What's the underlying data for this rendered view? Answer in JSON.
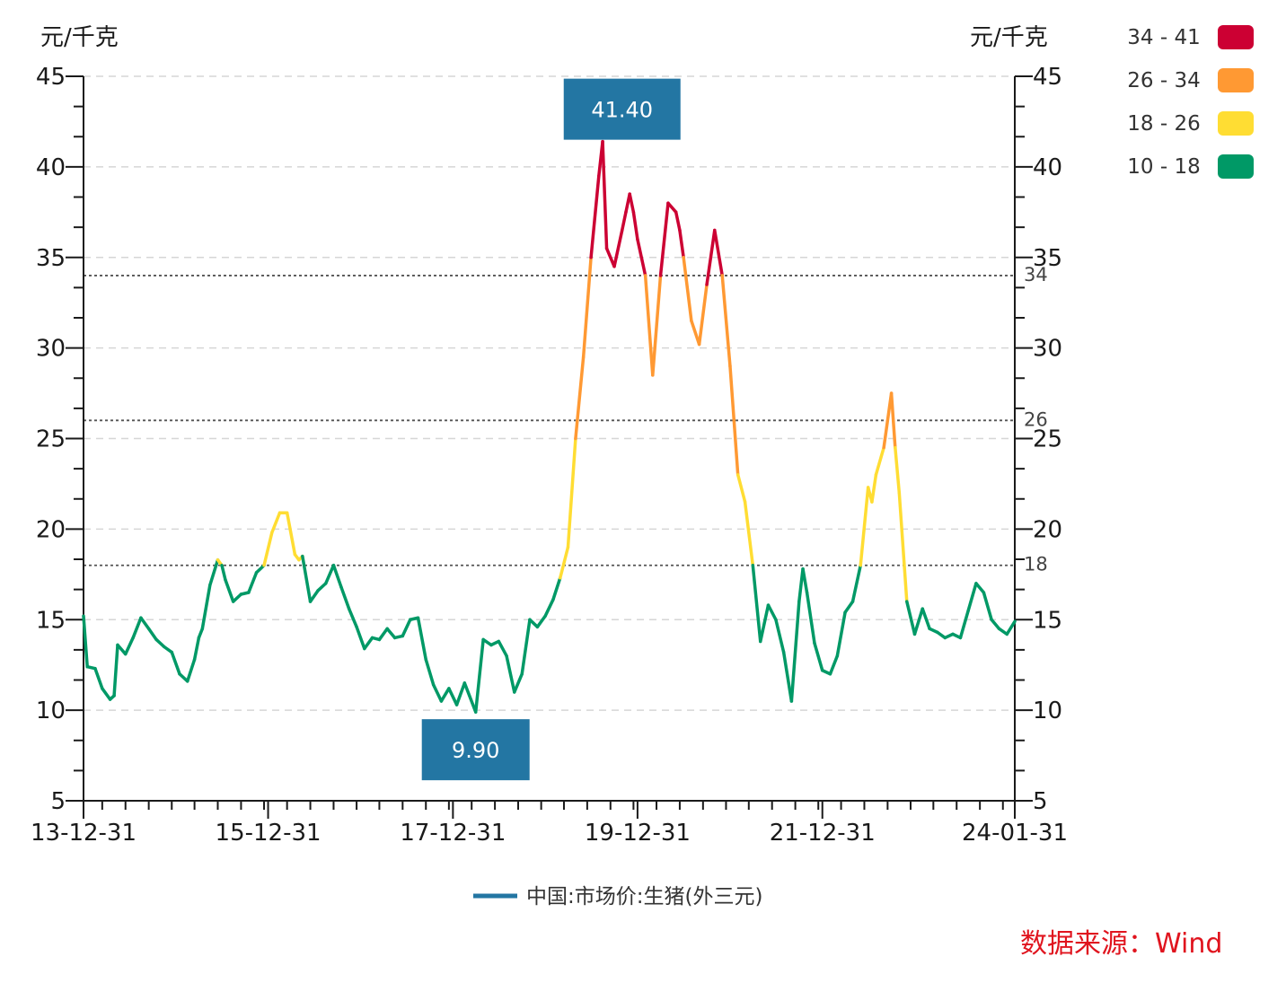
{
  "chart_data": {
    "type": "line",
    "y_unit_left": "元/千克",
    "y_unit_right": "元/千克",
    "ylim": [
      5,
      45
    ],
    "y_ticks": [
      5,
      10,
      15,
      20,
      25,
      30,
      35,
      40,
      45
    ],
    "x_range": [
      "2013-12-31",
      "2024-01-31"
    ],
    "x_tick_labels": [
      {
        "date": "2013-12-31",
        "label": "13-12-31"
      },
      {
        "date": "2015-12-31",
        "label": "15-12-31"
      },
      {
        "date": "2017-12-31",
        "label": "17-12-31"
      },
      {
        "date": "2019-12-31",
        "label": "19-12-31"
      },
      {
        "date": "2021-12-31",
        "label": "21-12-31"
      },
      {
        "date": "2024-01-31",
        "label": "24-01-31"
      }
    ],
    "grid": true,
    "thresholds": [
      {
        "value": 34,
        "label": "34"
      },
      {
        "value": 26,
        "label": "26"
      },
      {
        "value": 18,
        "label": "18"
      }
    ],
    "color_bands": [
      {
        "label": "34 - 41",
        "min": 34,
        "max": 41,
        "color": "#cc0033"
      },
      {
        "label": "26 - 34",
        "min": 26,
        "max": 34,
        "color": "#ff9933"
      },
      {
        "label": "18 - 26",
        "min": 18,
        "max": 26,
        "color": "#ffdd33"
      },
      {
        "label": "10 - 18",
        "min": 10,
        "max": 18,
        "color": "#009966"
      }
    ],
    "annotations": [
      {
        "label": "41.40",
        "date": "2019-10-31",
        "value": 41.4
      },
      {
        "label": "9.90",
        "date": "2018-03-31",
        "value": 9.9
      }
    ],
    "legend_position": "bottom",
    "series": [
      {
        "name": "中国:市场价:生猪(外三元)",
        "color": "#2376a3",
        "x": [
          "2013-12-31",
          "2014-01-15",
          "2014-02-15",
          "2014-03-15",
          "2014-04-15",
          "2014-05-01",
          "2014-05-15",
          "2014-06-15",
          "2014-07-15",
          "2014-08-15",
          "2014-09-15",
          "2014-10-15",
          "2014-11-15",
          "2014-12-15",
          "2015-01-15",
          "2015-02-15",
          "2015-03-15",
          "2015-04-01",
          "2015-04-15",
          "2015-05-15",
          "2015-06-15",
          "2015-07-01",
          "2015-07-15",
          "2015-08-15",
          "2015-09-15",
          "2015-10-15",
          "2015-11-15",
          "2015-12-15",
          "2016-01-15",
          "2016-02-15",
          "2016-03-15",
          "2016-04-15",
          "2016-05-01",
          "2016-05-15",
          "2016-06-15",
          "2016-07-15",
          "2016-08-15",
          "2016-09-15",
          "2016-10-15",
          "2016-11-15",
          "2016-12-15",
          "2017-01-15",
          "2017-02-15",
          "2017-03-15",
          "2017-04-15",
          "2017-05-15",
          "2017-06-15",
          "2017-07-15",
          "2017-08-15",
          "2017-09-15",
          "2017-10-15",
          "2017-11-15",
          "2017-12-15",
          "2018-01-15",
          "2018-02-15",
          "2018-03-31",
          "2018-04-30",
          "2018-05-31",
          "2018-06-30",
          "2018-07-31",
          "2018-08-31",
          "2018-09-30",
          "2018-10-31",
          "2018-11-30",
          "2018-12-31",
          "2019-01-31",
          "2019-02-28",
          "2019-03-31",
          "2019-04-30",
          "2019-05-31",
          "2019-06-30",
          "2019-07-31",
          "2019-08-15",
          "2019-08-31",
          "2019-09-30",
          "2019-10-31",
          "2019-11-15",
          "2019-11-30",
          "2019-12-15",
          "2019-12-31",
          "2020-01-31",
          "2020-02-29",
          "2020-03-31",
          "2020-04-30",
          "2020-05-31",
          "2020-06-15",
          "2020-06-30",
          "2020-07-31",
          "2020-08-31",
          "2020-09-30",
          "2020-10-31",
          "2020-11-30",
          "2020-12-31",
          "2021-01-31",
          "2021-02-28",
          "2021-03-31",
          "2021-04-30",
          "2021-05-31",
          "2021-06-30",
          "2021-07-31",
          "2021-08-31",
          "2021-09-30",
          "2021-10-15",
          "2021-10-31",
          "2021-11-30",
          "2021-12-31",
          "2022-01-31",
          "2022-02-28",
          "2022-03-31",
          "2022-04-30",
          "2022-05-31",
          "2022-06-30",
          "2022-07-15",
          "2022-07-31",
          "2022-08-31",
          "2022-09-30",
          "2022-10-15",
          "2022-10-31",
          "2022-11-30",
          "2022-12-31",
          "2023-01-31",
          "2023-02-28",
          "2023-03-31",
          "2023-04-30",
          "2023-05-31",
          "2023-06-30",
          "2023-07-31",
          "2023-08-31",
          "2023-09-30",
          "2023-10-31",
          "2023-11-30",
          "2023-12-31",
          "2024-01-31"
        ],
        "values": [
          15.2,
          12.4,
          12.3,
          11.2,
          10.6,
          10.8,
          13.6,
          13.1,
          14.0,
          15.1,
          14.5,
          13.9,
          13.5,
          13.2,
          12.0,
          11.6,
          12.8,
          14.0,
          14.5,
          16.9,
          18.3,
          18.0,
          17.2,
          16.0,
          16.4,
          16.5,
          17.6,
          18.0,
          19.8,
          20.9,
          20.9,
          18.6,
          18.3,
          18.5,
          16.0,
          16.6,
          17.0,
          18.0,
          16.8,
          15.6,
          14.6,
          13.4,
          14.0,
          13.9,
          14.5,
          14.0,
          14.1,
          15.0,
          15.1,
          12.8,
          11.4,
          10.5,
          11.2,
          10.3,
          11.5,
          9.9,
          13.9,
          13.6,
          13.8,
          13.0,
          11.0,
          12.0,
          15.0,
          14.6,
          15.2,
          16.1,
          17.3,
          19.0,
          25.0,
          29.5,
          35.0,
          39.5,
          41.4,
          35.5,
          34.5,
          36.5,
          37.5,
          38.5,
          37.5,
          36.0,
          34.0,
          28.5,
          34.0,
          38.0,
          37.5,
          36.5,
          35.0,
          31.5,
          30.2,
          33.5,
          36.5,
          34.0,
          29.0,
          23.0,
          21.5,
          18.0,
          13.8,
          15.8,
          15.0,
          13.2,
          10.5,
          16.0,
          17.8,
          16.5,
          13.7,
          12.2,
          12.0,
          13.0,
          15.4,
          16.0,
          18.0,
          22.3,
          21.5,
          23.0,
          24.5,
          27.5,
          24.5,
          22.0,
          16.0,
          14.2,
          15.6,
          14.5,
          14.3,
          14.0,
          14.2,
          14.0,
          15.5,
          17.0,
          16.5,
          15.0,
          14.5,
          14.2,
          14.9
        ]
      }
    ]
  },
  "source": "数据来源：Wind"
}
